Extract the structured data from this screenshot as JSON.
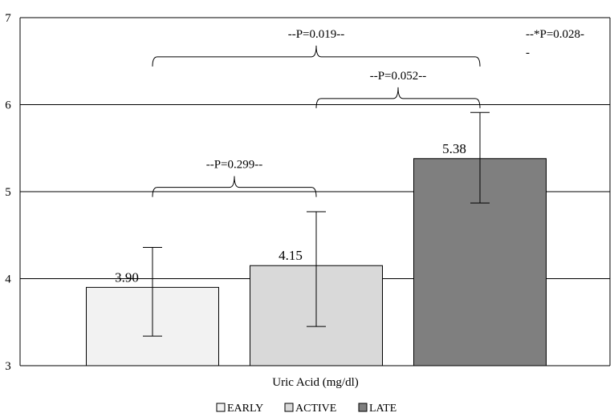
{
  "chart_data": {
    "type": "bar",
    "categories": [
      "EARLY",
      "ACTIVE",
      "LATE"
    ],
    "values": [
      3.9,
      4.15,
      5.38
    ],
    "value_labels": [
      "3.90",
      "4.15",
      "5.38"
    ],
    "error_low": [
      3.34,
      3.45,
      4.87
    ],
    "error_high": [
      4.36,
      4.77,
      5.91
    ],
    "colors": [
      "#f2f2f2",
      "#d9d9d9",
      "#7f7f7f"
    ],
    "xlabel": "Uric Acid (mg/dl)",
    "ylim": [
      3,
      7
    ],
    "yticks": [
      "3",
      "4",
      "5",
      "6",
      "7"
    ],
    "grid": true,
    "legend": [
      "EARLY",
      "ACTIVE",
      "LATE"
    ],
    "legend_position": "bottom",
    "annotations": [
      {
        "from": 0,
        "to": 1,
        "level": 5.05,
        "label": "--P=0.299--"
      },
      {
        "from": 1,
        "to": 2,
        "level": 6.07,
        "label": "--P=0.052--"
      },
      {
        "from": 0,
        "to": 2,
        "level": 6.55,
        "label": "--P=0.019--"
      }
    ],
    "corner_note": [
      "--*P=0.028-",
      "-"
    ]
  }
}
